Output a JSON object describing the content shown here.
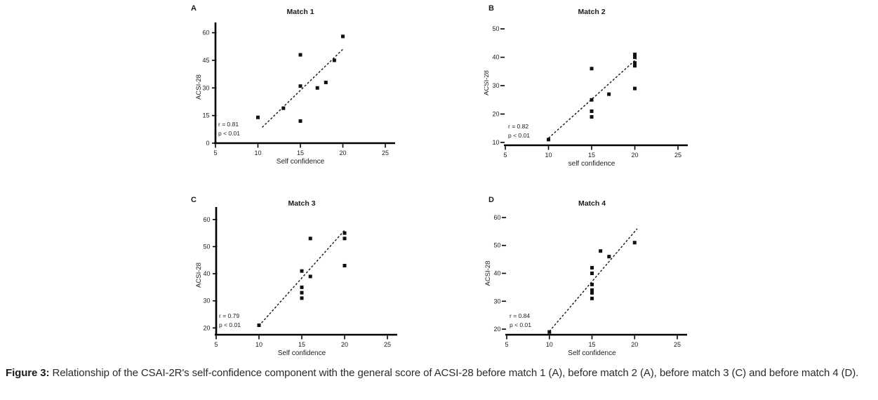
{
  "figure": {
    "caption_label": "Figure 3:",
    "caption_text": " Relationship of the CSAI-2R's self-confidence component with the general score of ACSI-28 before match 1 (A), before match 2 (A), before match 3 (C) and before match 4 (D)."
  },
  "colors": {
    "marker": "#111111",
    "trend_line": "#111111",
    "axis": "#000000",
    "text": "#1b1b1b",
    "caption_text": "#2b2b2b"
  },
  "chart_data": [
    {
      "type": "scatter",
      "panel_letter": "A",
      "title": "Match 1",
      "xlabel": "Self confidence",
      "ylabel": "ACSI-28",
      "xlim": [
        5,
        25
      ],
      "x_ticks": [
        5,
        10,
        15,
        20,
        25
      ],
      "ylim": [
        0,
        61
      ],
      "y_ticks": [
        0,
        15,
        30,
        45,
        60
      ],
      "y_axis_line": true,
      "grid": false,
      "legend": false,
      "annotation": [
        "r = 0.81",
        "p < 0.01"
      ],
      "points": [
        [
          20,
          58
        ],
        [
          15,
          48
        ],
        [
          19,
          45
        ],
        [
          18,
          33
        ],
        [
          15,
          31
        ],
        [
          17,
          30
        ],
        [
          13,
          19
        ],
        [
          10,
          14
        ],
        [
          15,
          12
        ]
      ],
      "trend": {
        "x1": 10.5,
        "y1": 8.6,
        "x2": 20,
        "y2": 51
      }
    },
    {
      "type": "scatter",
      "panel_letter": "B",
      "title": "Match 2",
      "xlabel": "self confidence",
      "ylabel": "ACSI-28",
      "xlim": [
        5,
        25
      ],
      "x_ticks": [
        5,
        10,
        15,
        20,
        25
      ],
      "ylim": [
        9,
        53
      ],
      "y_ticks": [
        10,
        20,
        30,
        40,
        50
      ],
      "y_axis_line": false,
      "grid": false,
      "legend": false,
      "annotation": [
        "r = 0.82",
        "p < 0.01"
      ],
      "points": [
        [
          10,
          11
        ],
        [
          15,
          36
        ],
        [
          15,
          25
        ],
        [
          15,
          21
        ],
        [
          15,
          19
        ],
        [
          17,
          27
        ],
        [
          20,
          29
        ],
        [
          20,
          41
        ],
        [
          20,
          40
        ],
        [
          20,
          38
        ],
        [
          20,
          37
        ]
      ],
      "trend": {
        "x1": 10,
        "y1": 11.5,
        "x2": 20.2,
        "y2": 39.4
      }
    },
    {
      "type": "scatter",
      "panel_letter": "C",
      "title": "Match 3",
      "xlabel": "Self confidence",
      "ylabel": "ACSI-28",
      "xlim": [
        5,
        25
      ],
      "x_ticks": [
        5,
        10,
        15,
        20,
        25
      ],
      "ylim": [
        17.5,
        61.5
      ],
      "y_ticks": [
        20,
        30,
        40,
        50,
        60
      ],
      "y_axis_line": true,
      "grid": false,
      "legend": false,
      "annotation": [
        "r = 0.79",
        "p < 0.01"
      ],
      "points": [
        [
          20,
          55
        ],
        [
          20,
          53
        ],
        [
          16,
          53
        ],
        [
          20,
          43
        ],
        [
          15,
          41
        ],
        [
          16,
          39
        ],
        [
          15,
          35
        ],
        [
          15,
          33
        ],
        [
          15,
          31
        ],
        [
          10,
          21
        ]
      ],
      "trend": {
        "x1": 10,
        "y1": 20.8,
        "x2": 20.1,
        "y2": 56.4
      }
    },
    {
      "type": "scatter",
      "panel_letter": "D",
      "title": "Match 4",
      "xlabel": "Self confidence",
      "ylabel": "ACSI-28",
      "xlim": [
        5,
        25
      ],
      "x_ticks": [
        5,
        10,
        15,
        20,
        25
      ],
      "ylim": [
        18,
        62
      ],
      "y_ticks": [
        20,
        30,
        40,
        50,
        60
      ],
      "y_axis_line": false,
      "grid": false,
      "legend": false,
      "annotation": [
        "r = 0.84",
        "p < 0.01"
      ],
      "points": [
        [
          10,
          19
        ],
        [
          15,
          42
        ],
        [
          15,
          40
        ],
        [
          15,
          36
        ],
        [
          15,
          34
        ],
        [
          15,
          33
        ],
        [
          15,
          31
        ],
        [
          16,
          48
        ],
        [
          17,
          46
        ],
        [
          20,
          51
        ]
      ],
      "trend": {
        "x1": 10,
        "y1": 19.2,
        "x2": 20.3,
        "y2": 56
      }
    }
  ]
}
